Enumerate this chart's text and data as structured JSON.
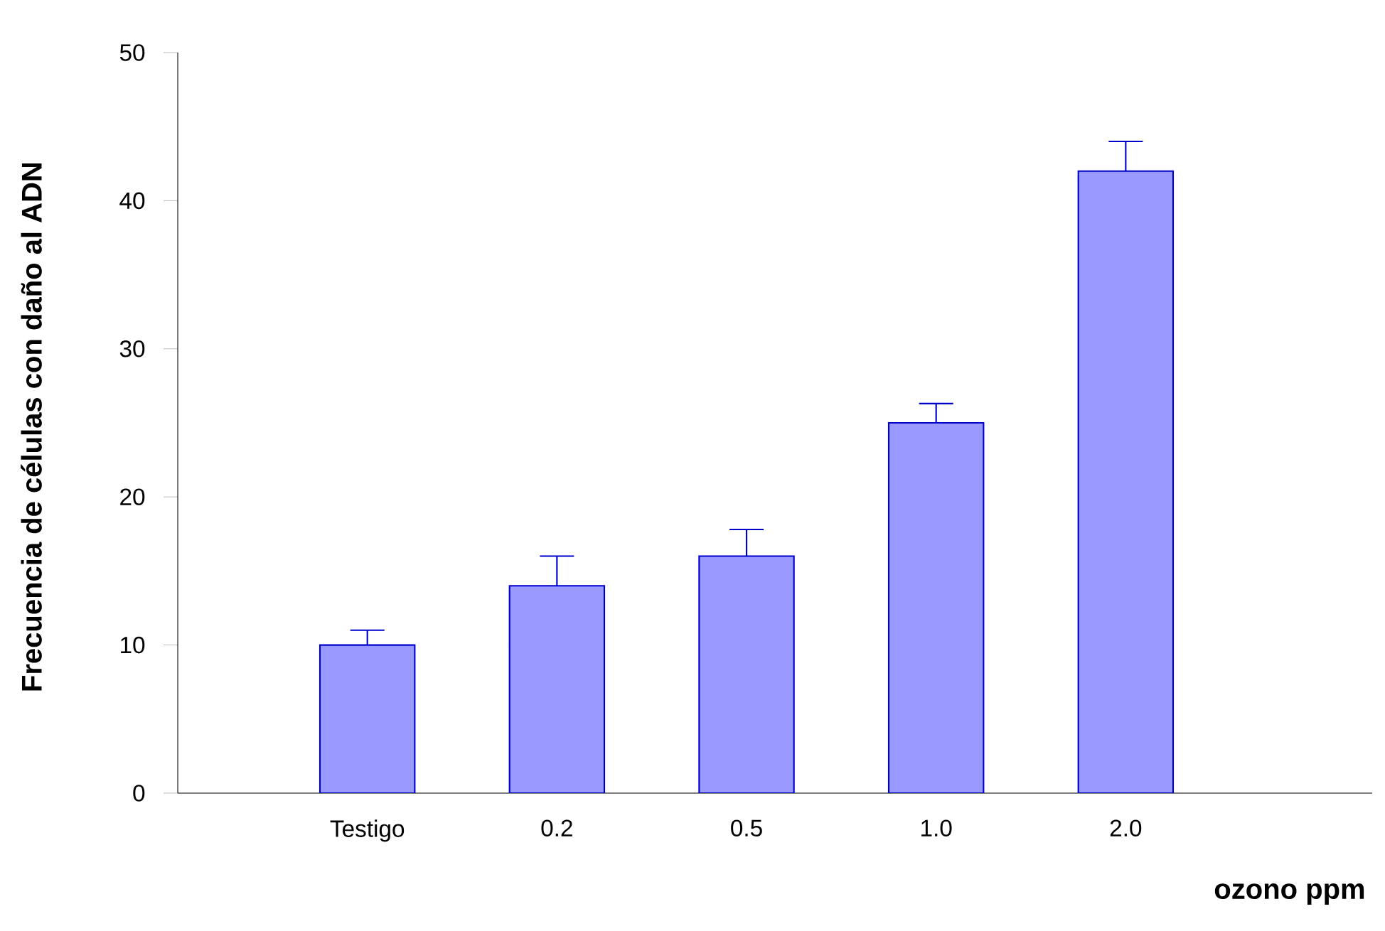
{
  "chart_data": {
    "type": "bar",
    "xlabel": "ozono ppm",
    "ylabel": "Frecuencia de células con daño al ADN",
    "categories": [
      "Testigo",
      "0.2",
      "0.5",
      "1.0",
      "2.0"
    ],
    "values": [
      10,
      14,
      16,
      25,
      42
    ],
    "errors": [
      [
        10,
        11.0
      ],
      [
        14,
        16.0
      ],
      [
        16,
        17.8
      ],
      [
        25,
        26.3
      ],
      [
        42,
        44.0
      ]
    ],
    "color": "#9999ff",
    "ylim": [
      0,
      50
    ],
    "yticks": [
      0,
      10,
      20,
      30,
      40,
      50
    ]
  }
}
